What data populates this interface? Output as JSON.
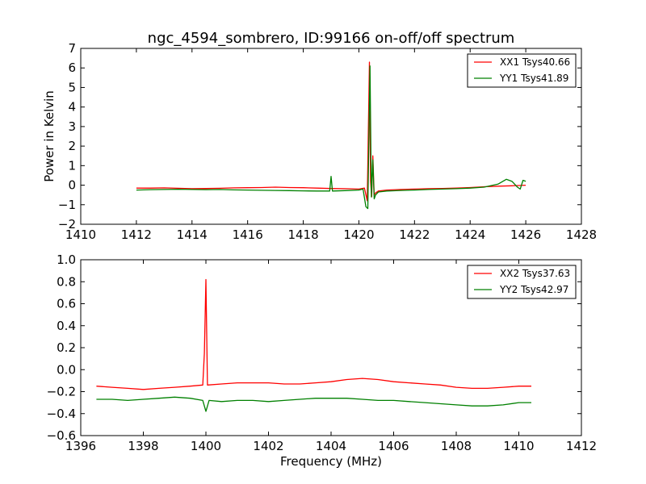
{
  "chart_data": [
    {
      "type": "line",
      "title": "ngc_4594_sombrero, ID:99166 on-off/off spectrum",
      "xlabel": "",
      "ylabel": "Power in Kelvin",
      "xlim": [
        1410,
        1428
      ],
      "ylim": [
        -2,
        7
      ],
      "xticks": [
        1410,
        1412,
        1414,
        1416,
        1418,
        1420,
        1422,
        1424,
        1426,
        1428
      ],
      "yticks": [
        -2,
        -1,
        0,
        1,
        2,
        3,
        4,
        5,
        6,
        7
      ],
      "ytick_labels": [
        "−2",
        "−1",
        "0",
        "1",
        "2",
        "3",
        "4",
        "5",
        "6",
        "7"
      ],
      "grid": false,
      "legend_position": "top-right",
      "series": [
        {
          "name": "XX1 Tsys40.66",
          "color": "#ff0000",
          "x": [
            1412.0,
            1412.5,
            1413.0,
            1413.5,
            1414.0,
            1414.5,
            1415.0,
            1415.5,
            1416.0,
            1416.5,
            1417.0,
            1417.5,
            1418.0,
            1418.5,
            1419.0,
            1419.5,
            1420.0,
            1420.2,
            1420.3,
            1420.38,
            1420.42,
            1420.46,
            1420.5,
            1420.55,
            1420.6,
            1420.7,
            1421.0,
            1421.5,
            1422.0,
            1422.5,
            1423.0,
            1423.5,
            1424.0,
            1424.5,
            1425.0,
            1425.5,
            1426.0
          ],
          "y": [
            -0.15,
            -0.15,
            -0.14,
            -0.16,
            -0.18,
            -0.17,
            -0.16,
            -0.14,
            -0.13,
            -0.12,
            -0.1,
            -0.12,
            -0.13,
            -0.15,
            -0.17,
            -0.18,
            -0.2,
            -0.15,
            -0.8,
            6.3,
            0.2,
            -0.6,
            1.5,
            -0.5,
            -0.4,
            -0.3,
            -0.25,
            -0.22,
            -0.2,
            -0.18,
            -0.17,
            -0.15,
            -0.12,
            -0.08,
            -0.05,
            -0.03,
            0.0
          ]
        },
        {
          "name": "YY1 Tsys41.89",
          "color": "#008000",
          "x": [
            1412.0,
            1412.5,
            1413.0,
            1413.5,
            1414.0,
            1414.5,
            1415.0,
            1415.5,
            1416.0,
            1416.5,
            1417.0,
            1417.5,
            1418.0,
            1418.5,
            1418.95,
            1419.0,
            1419.05,
            1419.5,
            1420.0,
            1420.15,
            1420.25,
            1420.32,
            1420.4,
            1420.45,
            1420.5,
            1420.55,
            1420.6,
            1420.7,
            1421.0,
            1421.5,
            1422.0,
            1422.5,
            1423.0,
            1423.5,
            1424.0,
            1424.5,
            1425.0,
            1425.3,
            1425.5,
            1425.7,
            1425.8,
            1425.9,
            1426.0
          ],
          "y": [
            -0.25,
            -0.23,
            -0.22,
            -0.21,
            -0.22,
            -0.23,
            -0.22,
            -0.24,
            -0.25,
            -0.26,
            -0.27,
            -0.28,
            -0.29,
            -0.3,
            -0.3,
            0.45,
            -0.3,
            -0.28,
            -0.25,
            -0.2,
            -1.1,
            -1.2,
            6.1,
            -0.6,
            1.3,
            -0.7,
            -0.5,
            -0.35,
            -0.3,
            -0.27,
            -0.25,
            -0.22,
            -0.2,
            -0.18,
            -0.15,
            -0.1,
            0.05,
            0.3,
            0.2,
            -0.1,
            -0.2,
            0.25,
            0.2
          ]
        }
      ]
    },
    {
      "type": "line",
      "title": "",
      "xlabel": "Frequency (MHz)",
      "ylabel": "",
      "xlim": [
        1396,
        1412
      ],
      "ylim": [
        -0.6,
        1.0
      ],
      "xticks": [
        1396,
        1398,
        1400,
        1402,
        1404,
        1406,
        1408,
        1410,
        1412
      ],
      "yticks": [
        -0.6,
        -0.4,
        -0.2,
        0.0,
        0.2,
        0.4,
        0.6,
        0.8,
        1.0
      ],
      "ytick_labels": [
        "−0.6",
        "−0.4",
        "−0.2",
        "0.0",
        "0.2",
        "0.4",
        "0.6",
        "0.8",
        "1.0"
      ],
      "grid": false,
      "legend_position": "top-right",
      "series": [
        {
          "name": "XX2 Tsys37.63",
          "color": "#ff0000",
          "x": [
            1396.5,
            1397.0,
            1397.5,
            1398.0,
            1398.5,
            1399.0,
            1399.5,
            1399.9,
            1399.95,
            1400.0,
            1400.05,
            1400.5,
            1401.0,
            1401.5,
            1402.0,
            1402.5,
            1403.0,
            1403.5,
            1404.0,
            1404.5,
            1405.0,
            1405.5,
            1406.0,
            1406.5,
            1407.0,
            1407.5,
            1408.0,
            1408.5,
            1409.0,
            1409.5,
            1410.0,
            1410.4
          ],
          "y": [
            -0.15,
            -0.16,
            -0.17,
            -0.18,
            -0.17,
            -0.16,
            -0.15,
            -0.14,
            0.15,
            0.82,
            -0.14,
            -0.13,
            -0.12,
            -0.12,
            -0.12,
            -0.13,
            -0.13,
            -0.12,
            -0.11,
            -0.09,
            -0.08,
            -0.09,
            -0.11,
            -0.12,
            -0.13,
            -0.14,
            -0.16,
            -0.17,
            -0.17,
            -0.16,
            -0.15,
            -0.15
          ]
        },
        {
          "name": "YY2 Tsys42.97",
          "color": "#008000",
          "x": [
            1396.5,
            1397.0,
            1397.5,
            1398.0,
            1398.5,
            1399.0,
            1399.5,
            1399.9,
            1400.0,
            1400.1,
            1400.5,
            1401.0,
            1401.5,
            1402.0,
            1402.5,
            1403.0,
            1403.5,
            1404.0,
            1404.5,
            1405.0,
            1405.5,
            1406.0,
            1406.5,
            1407.0,
            1407.5,
            1408.0,
            1408.5,
            1409.0,
            1409.5,
            1410.0,
            1410.4
          ],
          "y": [
            -0.27,
            -0.27,
            -0.28,
            -0.27,
            -0.26,
            -0.25,
            -0.26,
            -0.28,
            -0.38,
            -0.28,
            -0.29,
            -0.28,
            -0.28,
            -0.29,
            -0.28,
            -0.27,
            -0.26,
            -0.26,
            -0.26,
            -0.27,
            -0.28,
            -0.28,
            -0.29,
            -0.3,
            -0.31,
            -0.32,
            -0.33,
            -0.33,
            -0.32,
            -0.3,
            -0.3
          ]
        }
      ]
    }
  ]
}
